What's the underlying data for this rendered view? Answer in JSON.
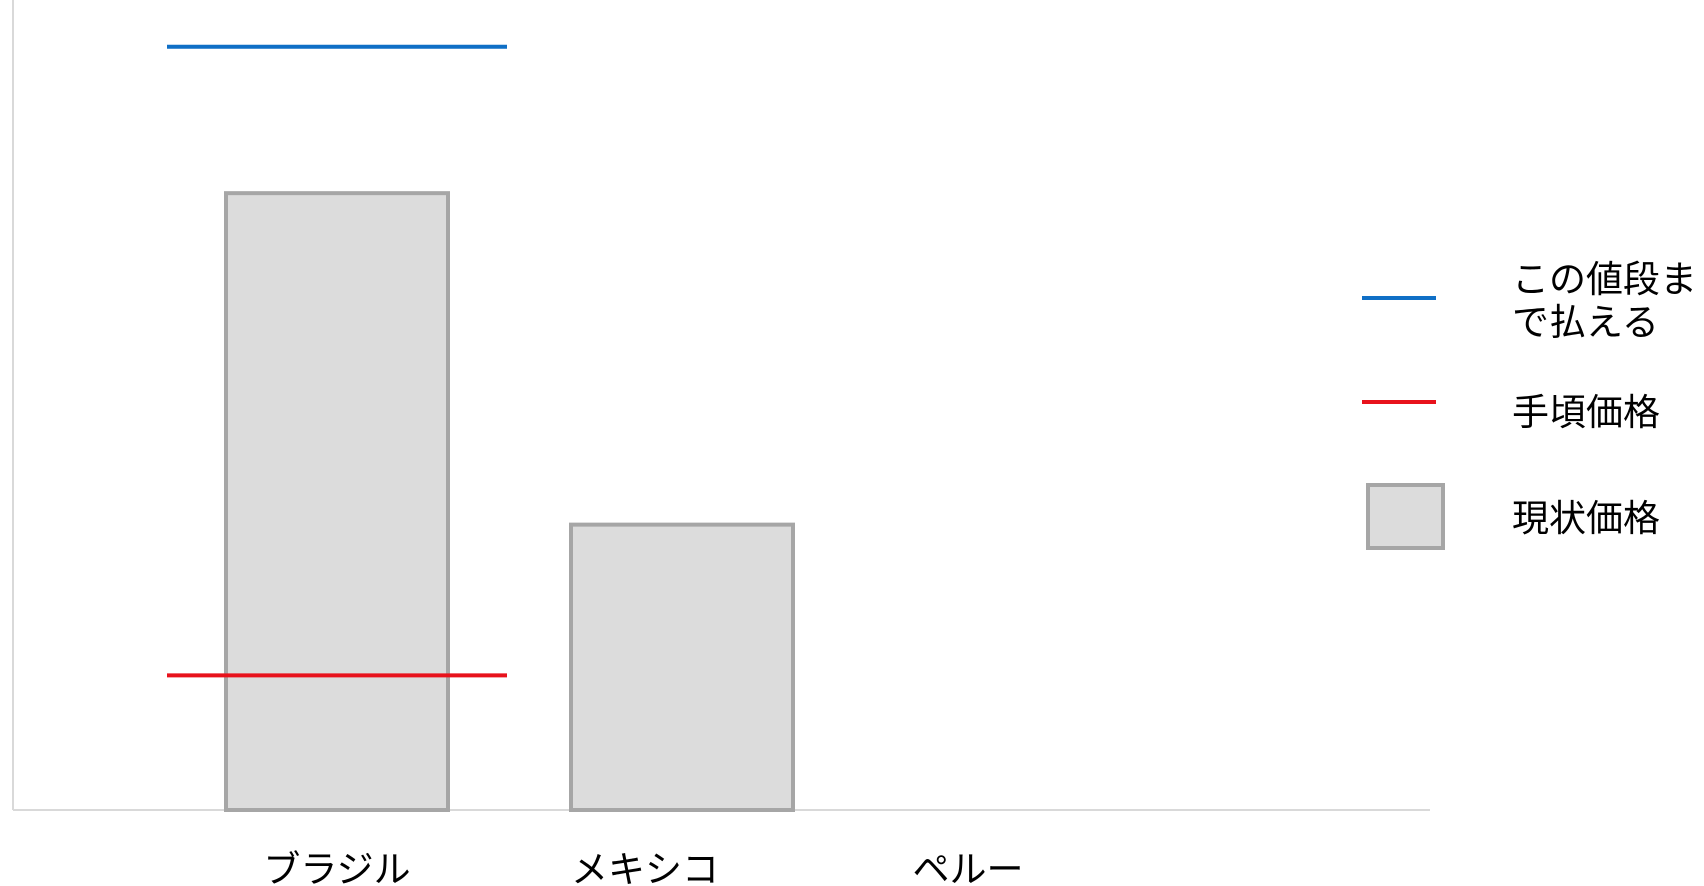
{
  "chart_data": {
    "type": "bar",
    "categories": [
      "ブラジル",
      "メキシコ",
      "ペルー"
    ],
    "series": [
      {
        "name": "現状価格",
        "kind": "bar",
        "color": "#dcdcdc",
        "stroke": "#a6a6a6",
        "values": [
          990,
          458,
          null
        ]
      },
      {
        "name": "この値段まで払える",
        "kind": "line",
        "color": "#0f6fc6",
        "values": [
          1225,
          null,
          null
        ]
      },
      {
        "name": "手頃価格",
        "kind": "line",
        "color": "#e8121c",
        "values": [
          216,
          null,
          null
        ]
      }
    ],
    "ylim": [
      0,
      1300
    ],
    "grid": false,
    "legend_position": "right",
    "legend": [
      {
        "label_lines": [
          "この値段ま",
          "で払える"
        ],
        "kind": "line",
        "color": "#0f6fc6"
      },
      {
        "label_lines": [
          "手頃価格"
        ],
        "kind": "line",
        "color": "#e8121c"
      },
      {
        "label_lines": [
          "現状価格"
        ],
        "kind": "box",
        "color": "#dcdcdc",
        "stroke": "#a6a6a6"
      }
    ],
    "axis_color": "#d9d9d9"
  }
}
